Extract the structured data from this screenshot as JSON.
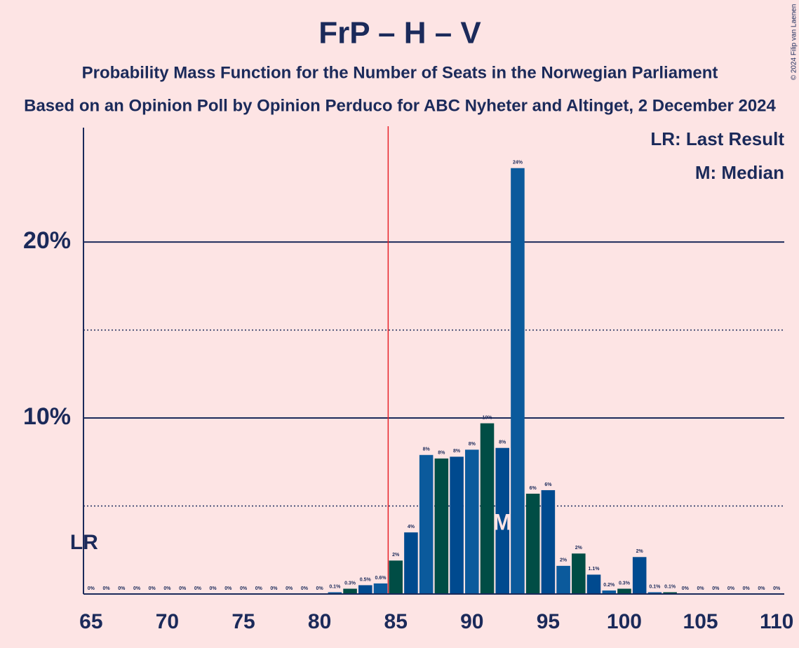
{
  "chart_data": {
    "type": "bar",
    "title": "FrP – H – V",
    "subtitle": "Probability Mass Function for the Number of Seats in the Norwegian Parliament",
    "subtitle2": "Based on an Opinion Poll by Opinion Perduco for ABC Nyheter and Altinget, 2 December 2024",
    "copyright": "© 2024 Filip van Laenen",
    "x": [
      65,
      66,
      67,
      68,
      69,
      70,
      71,
      72,
      73,
      74,
      75,
      76,
      77,
      78,
      79,
      80,
      81,
      82,
      83,
      84,
      85,
      86,
      87,
      88,
      89,
      90,
      91,
      92,
      93,
      94,
      95,
      96,
      97,
      98,
      99,
      100,
      101,
      102,
      103,
      104,
      105,
      106,
      107,
      108,
      109,
      110
    ],
    "values": [
      0,
      0,
      0,
      0,
      0,
      0,
      0,
      0,
      0,
      0,
      0,
      0,
      0,
      0,
      0,
      0,
      0.1,
      0.3,
      0.5,
      0.6,
      1.9,
      3.5,
      7.9,
      7.7,
      7.8,
      8.2,
      9.7,
      8.3,
      24.2,
      5.7,
      5.9,
      1.6,
      2.3,
      1.1,
      0.2,
      0.3,
      2.1,
      0.1,
      0.1,
      0,
      0,
      0,
      0,
      0,
      0,
      0
    ],
    "value_labels": [
      "0%",
      "0%",
      "0%",
      "0%",
      "0%",
      "0%",
      "0%",
      "0%",
      "0%",
      "0%",
      "0%",
      "0%",
      "0%",
      "0%",
      "0%",
      "0%",
      "0.1%",
      "0.3%",
      "0.5%",
      "0.6%",
      "2%",
      "4%",
      "8%",
      "8%",
      "8%",
      "8%",
      "10%",
      "8%",
      "24%",
      "6%",
      "6%",
      "2%",
      "2%",
      "1.1%",
      "0.2%",
      "0.3%",
      "2%",
      "0.1%",
      "0.1%",
      "0%",
      "0%",
      "0%",
      "0%",
      "0%",
      "0%",
      "0%"
    ],
    "colors": [
      "#0b5a9c",
      "#004d45",
      "#004a8f"
    ],
    "xlim": [
      64.5,
      110.5
    ],
    "xticks": [
      65,
      70,
      75,
      80,
      85,
      90,
      95,
      100,
      105,
      110
    ],
    "ylim": [
      0,
      26.5
    ],
    "yticks": [
      {
        "value": 10,
        "label": "10%"
      },
      {
        "value": 20,
        "label": "20%"
      }
    ],
    "minor_yticks": [
      5,
      15
    ],
    "majority": 84.5,
    "last_result": {
      "x": 65,
      "label": "LR"
    },
    "median": {
      "x": 92,
      "label": "M"
    },
    "legend": [
      "LR: Last Result",
      "M: Median"
    ]
  }
}
